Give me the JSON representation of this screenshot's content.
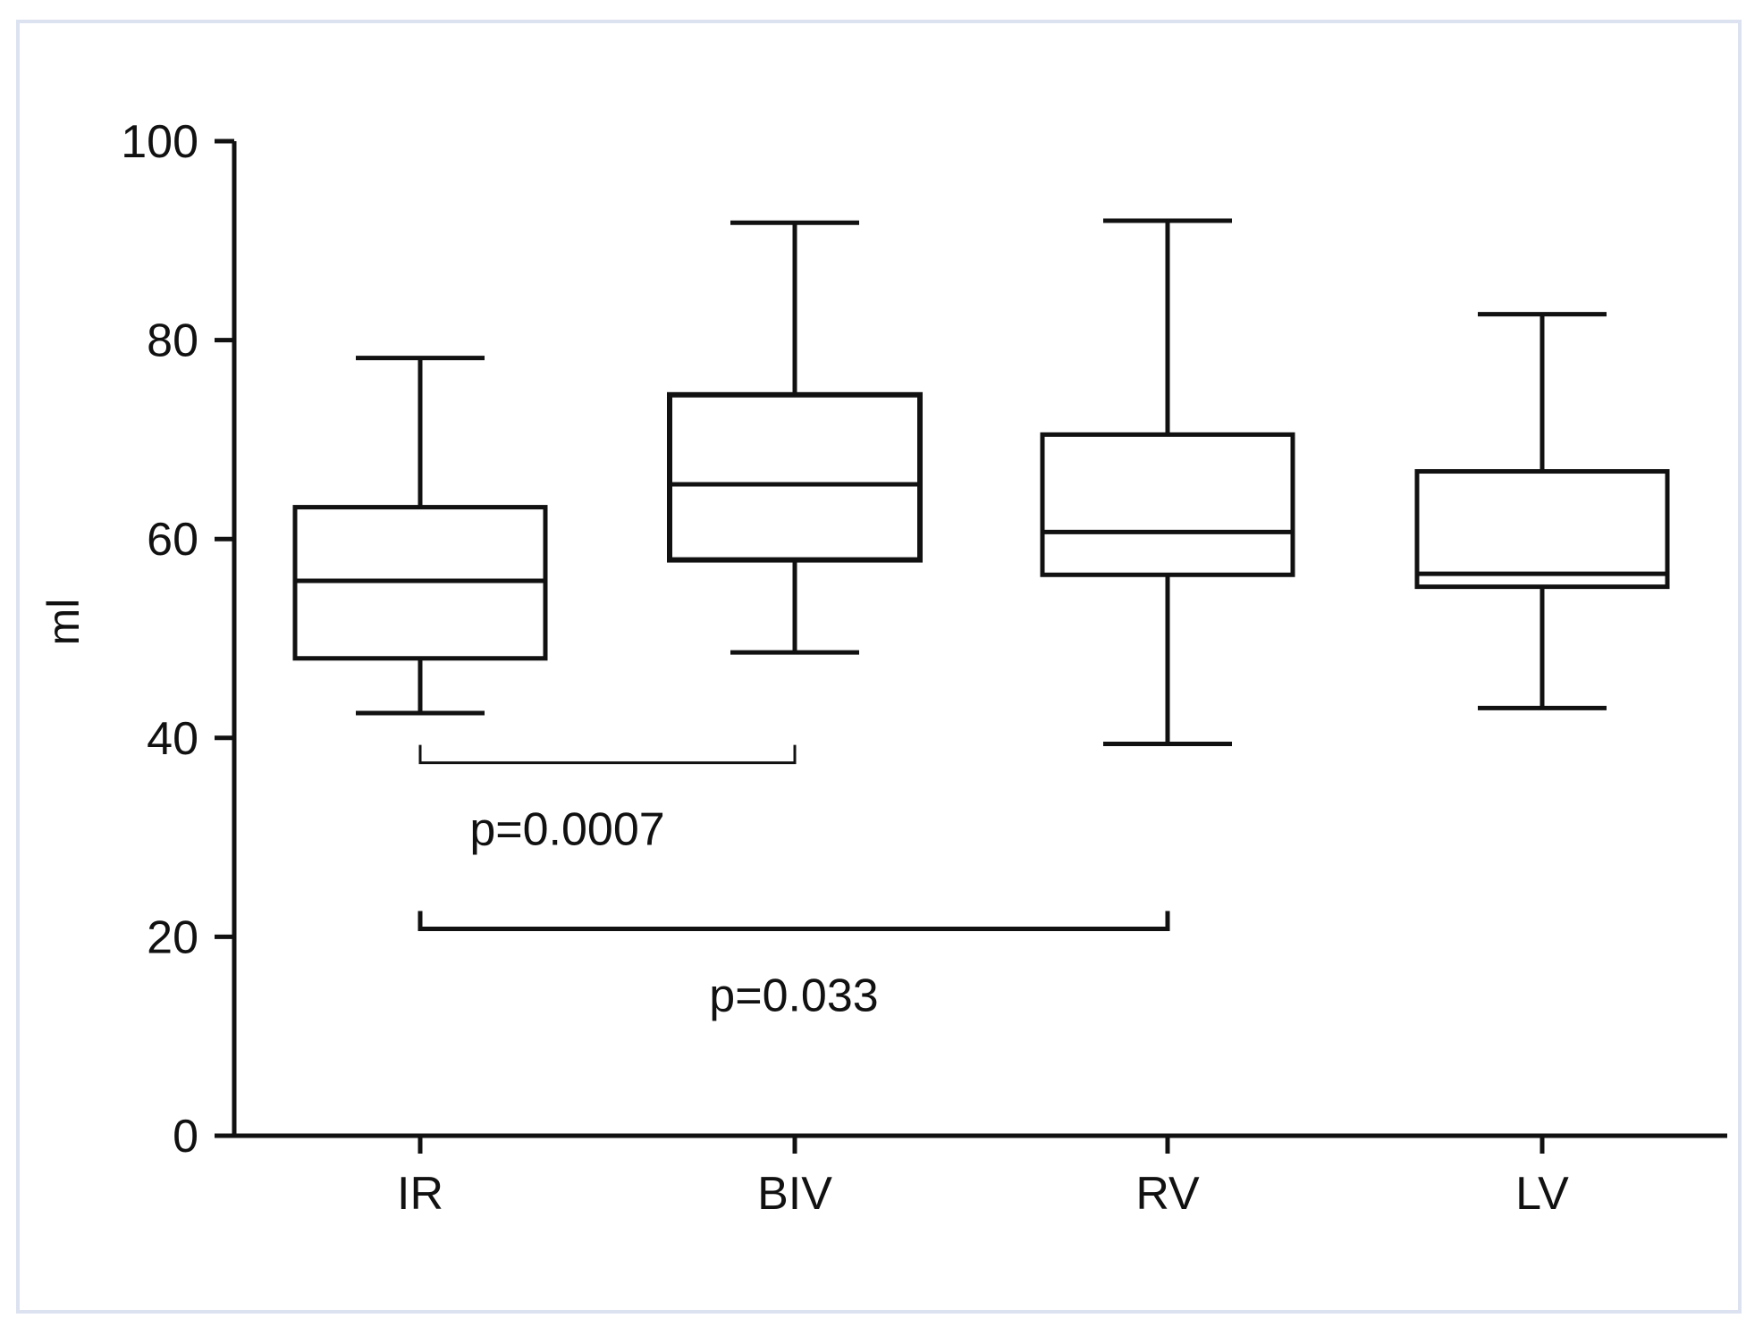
{
  "colors": {
    "frame_border": "#dde2f1",
    "ink": "#111111",
    "box_fill": "#ffffff"
  },
  "chart_data": {
    "type": "box",
    "xlabel": "",
    "ylabel": "ml",
    "ylim": [
      0,
      100
    ],
    "yticks": [
      0,
      20,
      40,
      60,
      80,
      100
    ],
    "grid": false,
    "categories": [
      "IR",
      "BIV",
      "RV",
      "LV"
    ],
    "boxes": [
      {
        "category": "IR",
        "min": 42.5,
        "q1": 48.0,
        "median": 55.8,
        "q3": 63.2,
        "max": 78.2
      },
      {
        "category": "BIV",
        "min": 48.6,
        "q1": 57.9,
        "median": 65.5,
        "q3": 74.5,
        "max": 91.8
      },
      {
        "category": "RV",
        "min": 39.4,
        "q1": 56.4,
        "median": 60.7,
        "q3": 70.5,
        "max": 92.0
      },
      {
        "category": "LV",
        "min": 43.0,
        "q1": 55.2,
        "median": 56.5,
        "q3": 66.8,
        "max": 82.6
      }
    ],
    "annotations": [
      {
        "from": "IR",
        "to": "BIV",
        "y": 37.5,
        "text": "p=0.0007"
      },
      {
        "from": "IR",
        "to": "RV",
        "y": 20.8,
        "text": "p=0.033"
      }
    ]
  }
}
